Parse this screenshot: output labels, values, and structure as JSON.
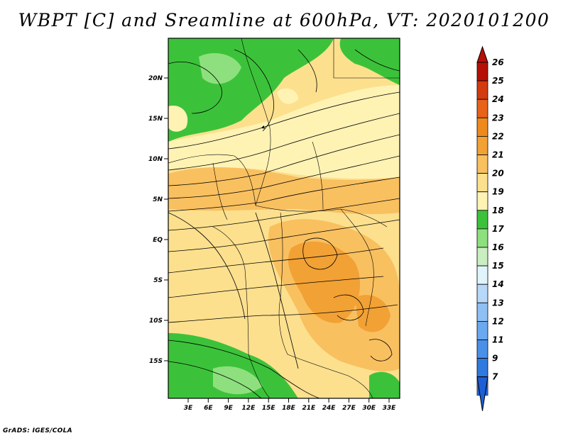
{
  "title": "WBPT [C] and Sreamline at 600hPa, VT: 2020101200",
  "credit": "GrADS: IGES/COLA",
  "lat_labels": [
    "20N",
    "15N",
    "10N",
    "5N",
    "EQ",
    "5S",
    "10S",
    "15S"
  ],
  "lon_labels": [
    "3E",
    "6E",
    "9E",
    "12E",
    "15E",
    "18E",
    "21E",
    "24E",
    "27E",
    "30E",
    "33E"
  ],
  "colorbar": {
    "labels": [
      "7",
      "9",
      "11",
      "12",
      "13",
      "14",
      "15",
      "16",
      "17",
      "18",
      "19",
      "20",
      "21",
      "22",
      "23",
      "24",
      "25",
      "26"
    ],
    "colors": [
      "#1f5fd6",
      "#2e7ae0",
      "#4a90e8",
      "#6aa8ef",
      "#8fc0f4",
      "#b7d8f8",
      "#e1f4fb",
      "#c9eec0",
      "#8ee07e",
      "#3cc23a",
      "#fff3b4",
      "#fce08e",
      "#f9c060",
      "#f2a135",
      "#ee8a1c",
      "#e8621a",
      "#d43a10",
      "#b51008"
    ]
  }
}
